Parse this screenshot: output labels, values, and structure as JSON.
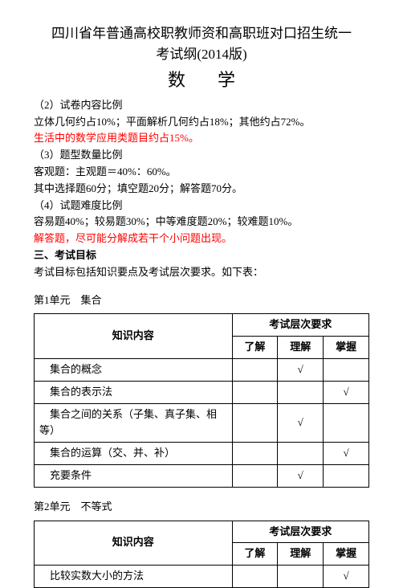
{
  "title_line1": "四川省年普通高校职教师资和高职班对口招生统一",
  "title_line2": "考试纲(2014版)",
  "subject": "数学",
  "lines": {
    "l1": "（2）试卷内容比例",
    "l2": "立体几何约占10%；平面解析几何约占18%；其他约占72%。",
    "l3": "生活中的数学应用类题目约占15%。",
    "l4": "（3）题型数量比例",
    "l5": "客观题：主观题＝40%：60%。",
    "l6": "其中选择题60分；填空题20分；解答题70分。",
    "l7": "（4）试题难度比例",
    "l8": "容易题40%；较易题30%；中等难度题20%；较难题10%。",
    "l9": "解答题，尽可能分解成若干个小问题出现。",
    "l10": "三、考试目标",
    "l11": "考试目标包括知识要点及考试层次要求。如下表："
  },
  "unit1": {
    "title": "第1单元　集合",
    "header_know": "知识内容",
    "header_req": "考试层次要求",
    "cols": [
      "了解",
      "理解",
      "掌握"
    ],
    "rows": [
      {
        "name": "　集合的概念",
        "checks": [
          "",
          "√",
          ""
        ]
      },
      {
        "name": "　集合的表示法",
        "checks": [
          "",
          "",
          "√"
        ]
      },
      {
        "name": "　集合之间的关系（子集、真子集、相等）",
        "checks": [
          "",
          "√",
          ""
        ]
      },
      {
        "name": "　集合的运算（交、并、补）",
        "checks": [
          "",
          "",
          "√"
        ]
      },
      {
        "name": "　充要条件",
        "checks": [
          "",
          "√",
          ""
        ]
      }
    ]
  },
  "unit2": {
    "title": "第2单元　不等式",
    "header_know": "知识内容",
    "header_req": "考试层次要求",
    "cols": [
      "了解",
      "理解",
      "掌握"
    ],
    "rows": [
      {
        "name": "　比较实数大小的方法",
        "checks": [
          "",
          "",
          "√"
        ]
      }
    ]
  }
}
